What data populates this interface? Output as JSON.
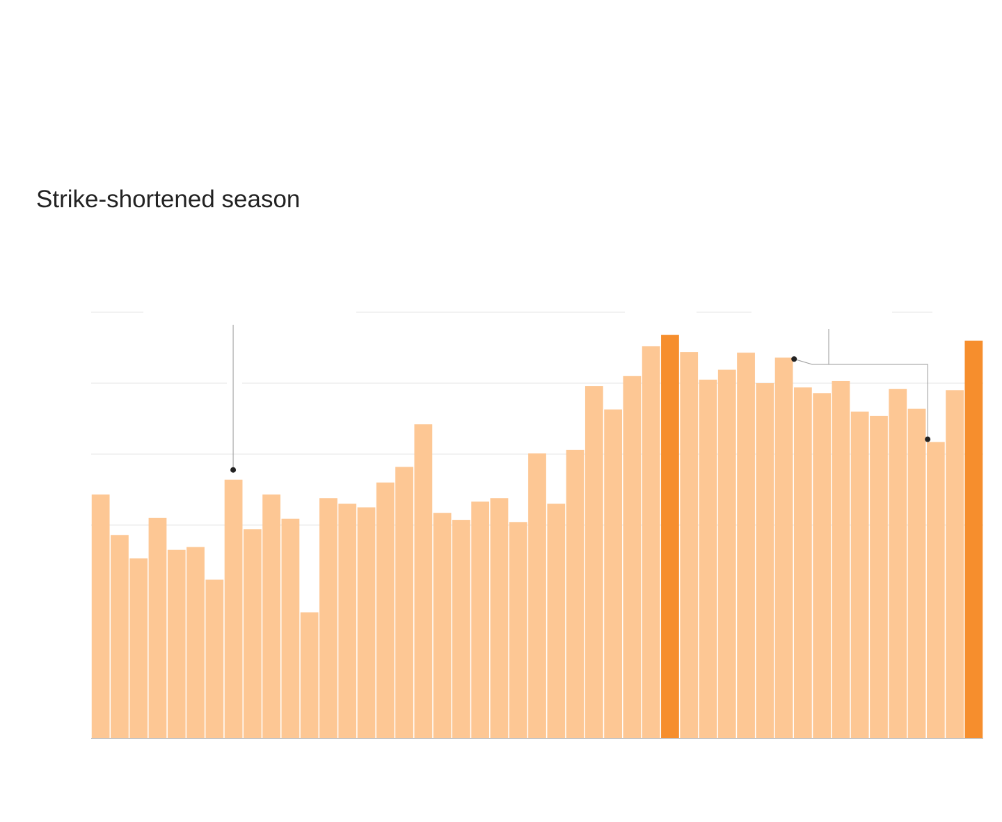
{
  "chart_data": {
    "type": "bar",
    "ylim": [
      0,
      6
    ],
    "grid": true,
    "values": [
      3.43,
      2.86,
      2.53,
      3.1,
      2.65,
      2.69,
      2.23,
      3.64,
      2.94,
      3.43,
      3.09,
      1.77,
      3.38,
      3.3,
      3.25,
      3.6,
      3.82,
      4.42,
      3.17,
      3.07,
      3.33,
      3.38,
      3.04,
      4.01,
      3.3,
      4.06,
      4.96,
      4.63,
      5.1,
      5.52,
      5.68,
      5.44,
      5.05,
      5.19,
      5.43,
      5,
      5.36,
      4.94,
      4.86,
      5.03,
      4.6,
      4.54,
      4.92,
      4.64,
      4.17,
      4.9,
      5.6
    ],
    "highlight_indices": [
      30,
      46
    ],
    "colors": {
      "bar": "#fdc794",
      "highlight": "#f68e2d",
      "grid": "#e4e4e4",
      "baseline": "#999999",
      "leader": "#999999",
      "dot": "#222222"
    }
  },
  "annotations": [
    {
      "title": "Strike-shortened season",
      "bar_index": 7
    },
    {
      "bar_index": 37,
      "bracket_to_index": 44
    }
  ]
}
